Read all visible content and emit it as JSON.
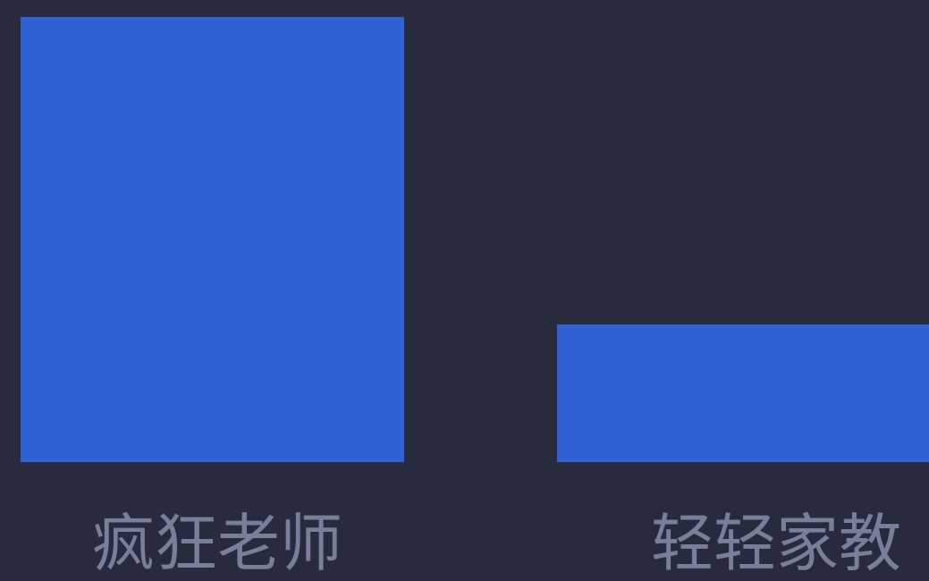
{
  "chart_data": {
    "type": "bar",
    "categories": [
      "疯狂老师",
      "轻轻家教"
    ],
    "values": [
      100,
      31
    ],
    "ylim": [
      0,
      100
    ],
    "grid": false,
    "legend": "none"
  },
  "colors": {
    "background": "#282a3e",
    "bar": "#2f61d5",
    "tick_label": "#7a7e99"
  }
}
